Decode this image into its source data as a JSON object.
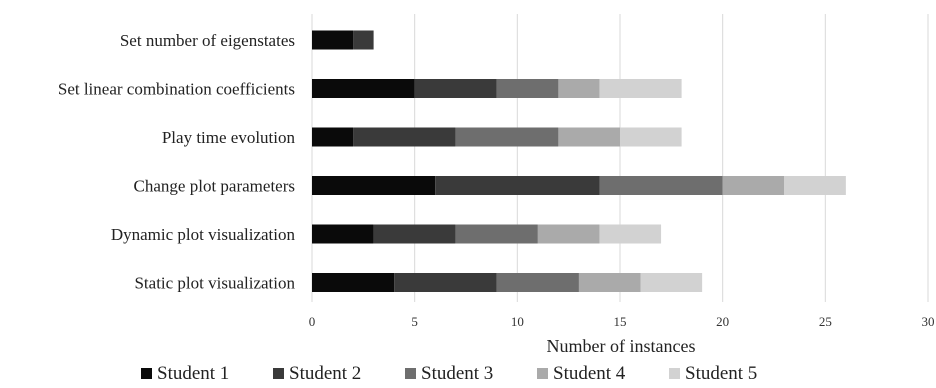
{
  "chart_data": {
    "type": "bar",
    "orientation": "horizontal",
    "stacked": true,
    "categories": [
      "Set number of eigenstates",
      "Set linear combination coefficients",
      "Play time evolution",
      "Change plot parameters",
      "Dynamic plot visualization",
      "Static plot visualization"
    ],
    "series": [
      {
        "name": "Student 1",
        "color": "#0a0a0a",
        "values": [
          2,
          5,
          2,
          6,
          3,
          4
        ]
      },
      {
        "name": "Student 2",
        "color": "#3a3a3a",
        "values": [
          1,
          4,
          5,
          8,
          4,
          5
        ]
      },
      {
        "name": "Student 3",
        "color": "#6e6e6e",
        "values": [
          0,
          3,
          5,
          6,
          4,
          4
        ]
      },
      {
        "name": "Student 4",
        "color": "#aaaaaa",
        "values": [
          0,
          2,
          3,
          3,
          3,
          3
        ]
      },
      {
        "name": "Student 5",
        "color": "#d2d2d2",
        "values": [
          0,
          4,
          3,
          3,
          3,
          3
        ]
      }
    ],
    "xlabel": "Number of instances",
    "ylabel": "",
    "xlim": [
      0,
      30
    ],
    "xticks": [
      "0",
      "5",
      "10",
      "15",
      "20",
      "25",
      "30"
    ],
    "grid": "vertical",
    "legend_position": "bottom"
  }
}
